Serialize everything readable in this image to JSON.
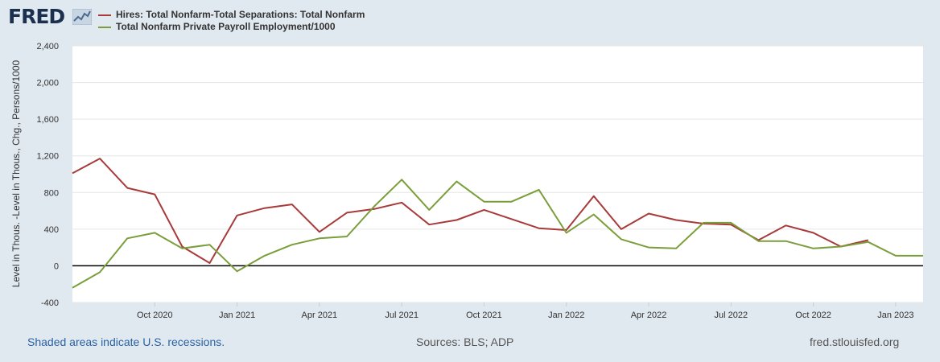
{
  "logo": {
    "text": "FRED",
    "icon": "line-chart-icon"
  },
  "legend": [
    {
      "label": "Hires: Total Nonfarm-Total Separations: Total Nonfarm",
      "color": "#a83a3a"
    },
    {
      "label": "Total Nonfarm Private Payroll Employment/1000",
      "color": "#7a9e3a"
    }
  ],
  "footer": {
    "recession_note": "Shaded areas indicate U.S. recessions.",
    "sources": "Sources: BLS; ADP",
    "site": "fred.stlouisfed.org"
  },
  "chart_data": {
    "type": "line",
    "title": "",
    "xlabel": "",
    "ylabel": "Level in Thous. -Level in Thous., Chg., Persons/1000",
    "ylim": [
      -400,
      2400
    ],
    "yticks": [
      -400,
      0,
      400,
      800,
      1200,
      1600,
      2000,
      2400
    ],
    "ytick_labels": [
      "-400",
      "0",
      "400",
      "800",
      "1,200",
      "1,600",
      "2,000",
      "2,400"
    ],
    "xlim": [
      "2020-07-01",
      "2023-02-01"
    ],
    "xticks": [
      "2020-10-01",
      "2021-01-01",
      "2021-04-01",
      "2021-07-01",
      "2021-10-01",
      "2022-01-01",
      "2022-04-01",
      "2022-07-01",
      "2022-10-01",
      "2023-01-01"
    ],
    "xtick_labels": [
      "Oct 2020",
      "Jan 2021",
      "Apr 2021",
      "Jul 2021",
      "Oct 2021",
      "Jan 2022",
      "Apr 2022",
      "Jul 2022",
      "Oct 2022",
      "Jan 2023"
    ],
    "grid": true,
    "zero_line": true,
    "series": [
      {
        "name": "Hires: Total Nonfarm-Total Separations: Total Nonfarm",
        "color": "#a83a3a",
        "x": [
          "2020-07-01",
          "2020-08-01",
          "2020-09-01",
          "2020-10-01",
          "2020-11-01",
          "2020-12-01",
          "2021-01-01",
          "2021-02-01",
          "2021-03-01",
          "2021-04-01",
          "2021-05-01",
          "2021-06-01",
          "2021-07-01",
          "2021-08-01",
          "2021-09-01",
          "2021-10-01",
          "2021-11-01",
          "2021-12-01",
          "2022-01-01",
          "2022-02-01",
          "2022-03-01",
          "2022-04-01",
          "2022-05-01",
          "2022-06-01",
          "2022-07-01",
          "2022-08-01",
          "2022-09-01",
          "2022-10-01",
          "2022-11-01",
          "2022-12-01"
        ],
        "values": [
          1010,
          1170,
          850,
          780,
          210,
          30,
          550,
          630,
          670,
          370,
          580,
          620,
          690,
          450,
          500,
          610,
          510,
          410,
          390,
          760,
          400,
          570,
          500,
          460,
          450,
          280,
          440,
          360,
          210,
          280
        ]
      },
      {
        "name": "Total Nonfarm Private Payroll Employment/1000",
        "color": "#7a9e3a",
        "x": [
          "2020-07-01",
          "2020-08-01",
          "2020-09-01",
          "2020-10-01",
          "2020-11-01",
          "2020-12-01",
          "2021-01-01",
          "2021-02-01",
          "2021-03-01",
          "2021-04-01",
          "2021-05-01",
          "2021-06-01",
          "2021-07-01",
          "2021-08-01",
          "2021-09-01",
          "2021-10-01",
          "2021-11-01",
          "2021-12-01",
          "2022-01-01",
          "2022-02-01",
          "2022-03-01",
          "2022-04-01",
          "2022-05-01",
          "2022-06-01",
          "2022-07-01",
          "2022-08-01",
          "2022-09-01",
          "2022-10-01",
          "2022-11-01",
          "2022-12-01",
          "2023-01-01",
          "2023-02-01"
        ],
        "values": [
          -240,
          -70,
          300,
          360,
          190,
          230,
          -60,
          110,
          230,
          300,
          320,
          650,
          940,
          610,
          920,
          700,
          700,
          830,
          360,
          560,
          290,
          200,
          190,
          470,
          470,
          270,
          270,
          190,
          210,
          260,
          110,
          110
        ]
      }
    ]
  }
}
